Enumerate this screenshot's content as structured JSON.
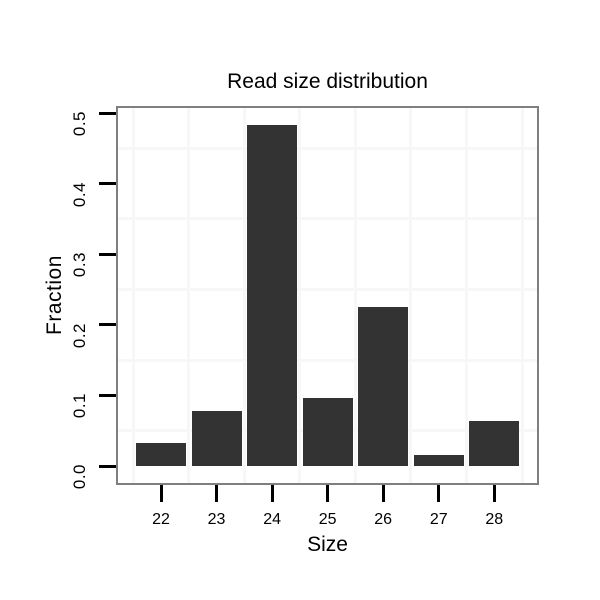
{
  "chart_data": {
    "type": "bar",
    "title": "Read size distribution",
    "xlabel": "Size",
    "ylabel": "Fraction",
    "categories": [
      "22",
      "23",
      "24",
      "25",
      "26",
      "27",
      "28"
    ],
    "values": [
      0.032,
      0.078,
      0.483,
      0.096,
      0.225,
      0.015,
      0.064
    ],
    "y_ticks": [
      "0.0",
      "0.1",
      "0.2",
      "0.3",
      "0.4",
      "0.5"
    ],
    "y_tick_values": [
      0.0,
      0.1,
      0.2,
      0.3,
      0.4,
      0.5
    ],
    "ylim": [
      0,
      0.5
    ],
    "bar_width_fraction": 0.9,
    "grid": "minor gridlines only (at 0.05 offsets and category midpoints)",
    "legend": "none",
    "colors": {
      "bar": "#333333",
      "panel_border": "#7f7f7f",
      "minor_grid": "#f7f7f7",
      "background": "#ffffff",
      "text": "#000000",
      "tick": "#000000"
    }
  }
}
